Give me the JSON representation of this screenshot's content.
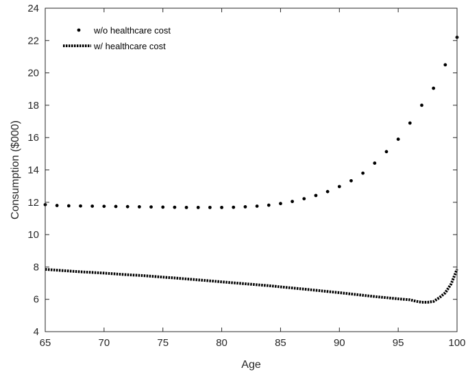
{
  "chart_data": {
    "type": "scatter",
    "xlabel": "Age",
    "ylabel": "Consumption ($000)",
    "xlim": [
      65,
      100
    ],
    "ylim": [
      4,
      24
    ],
    "xticks": [
      65,
      70,
      75,
      80,
      85,
      90,
      95,
      100
    ],
    "yticks": [
      4,
      6,
      8,
      10,
      12,
      14,
      16,
      18,
      20,
      22,
      24
    ],
    "grid": false,
    "legend_position": "top-left",
    "series": [
      {
        "name": "w/o healthcare cost",
        "style": "markers",
        "color": "#000000",
        "x": [
          65,
          66,
          67,
          68,
          69,
          70,
          71,
          72,
          73,
          74,
          75,
          76,
          77,
          78,
          79,
          80,
          81,
          82,
          83,
          84,
          85,
          86,
          87,
          88,
          89,
          90,
          91,
          92,
          93,
          94,
          95,
          96,
          97,
          98,
          99,
          100
        ],
        "y": [
          11.85,
          11.8,
          11.78,
          11.77,
          11.76,
          11.75,
          11.74,
          11.73,
          11.72,
          11.71,
          11.7,
          11.69,
          11.68,
          11.68,
          11.68,
          11.68,
          11.69,
          11.72,
          11.76,
          11.82,
          11.92,
          12.05,
          12.22,
          12.42,
          12.66,
          12.97,
          13.33,
          13.8,
          14.42,
          15.13,
          15.9,
          16.9,
          18.0,
          19.05,
          20.5,
          22.2
        ]
      },
      {
        "name": "w/ healthcare cost",
        "style": "dotted-line",
        "color": "#000000",
        "x": [
          65,
          66,
          67,
          68,
          69,
          70,
          71,
          72,
          73,
          74,
          75,
          76,
          77,
          78,
          79,
          80,
          81,
          82,
          83,
          84,
          85,
          86,
          87,
          88,
          89,
          90,
          91,
          92,
          93,
          94,
          95,
          96,
          96.5,
          97,
          97.5,
          98,
          98.5,
          99,
          99.5,
          100
        ],
        "y": [
          7.85,
          7.8,
          7.75,
          7.7,
          7.66,
          7.62,
          7.57,
          7.52,
          7.48,
          7.43,
          7.37,
          7.32,
          7.26,
          7.2,
          7.14,
          7.08,
          7.02,
          6.96,
          6.9,
          6.84,
          6.77,
          6.7,
          6.63,
          6.56,
          6.48,
          6.41,
          6.33,
          6.25,
          6.17,
          6.1,
          6.03,
          5.97,
          5.88,
          5.82,
          5.82,
          5.87,
          6.1,
          6.4,
          6.95,
          7.85
        ]
      }
    ]
  }
}
